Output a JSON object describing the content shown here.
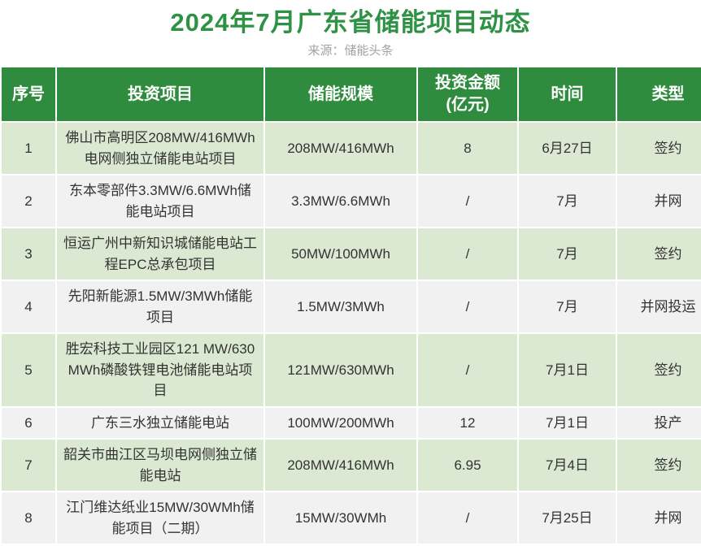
{
  "header": {
    "title": "2024年7月广东省储能项目动态",
    "source": "来源：储能头条"
  },
  "colors": {
    "title_green": "#2E9245",
    "table_header_green": "#2F8C3E",
    "row_light_green": "#DBE9D2",
    "row_light_gray": "#F1F1F1",
    "header_text": "#FFFFFF",
    "cell_text": "#333333",
    "source_gray": "#A3A3A3"
  },
  "chart_data": {
    "type": "table",
    "title": "2024年7月广东省储能项目动态",
    "subtitle": "来源：储能头条",
    "columns": [
      {
        "key": "no",
        "label": "序号"
      },
      {
        "key": "project",
        "label": "投资项目"
      },
      {
        "key": "scale",
        "label": "储能规模"
      },
      {
        "key": "amount",
        "label": "投资金额\n(亿元)"
      },
      {
        "key": "date",
        "label": "时间"
      },
      {
        "key": "type",
        "label": "类型"
      }
    ],
    "rows": [
      {
        "no": "1",
        "project": "佛山市高明区208MW/416MWh电网侧独立储能电站项目",
        "scale": "208MW/416MWh",
        "amount": "8",
        "date": "6月27日",
        "type": "签约"
      },
      {
        "no": "2",
        "project": "东本零部件3.3MW/6.6MWh储能电站项目",
        "scale": "3.3MW/6.6MWh",
        "amount": "/",
        "date": "7月",
        "type": "并网"
      },
      {
        "no": "3",
        "project": "恒运广州中新知识城储能电站工程EPC总承包项目",
        "scale": "50MW/100MWh",
        "amount": "/",
        "date": "7月",
        "type": "签约"
      },
      {
        "no": "4",
        "project": "先阳新能源1.5MW/3MWh储能项目",
        "scale": "1.5MW/3MWh",
        "amount": "/",
        "date": "7月",
        "type": "并网投运"
      },
      {
        "no": "5",
        "project": "胜宏科技工业园区121 MW/630 MWh磷酸铁锂电池储能电站项目",
        "scale": "121MW/630MWh",
        "amount": "/",
        "date": "7月1日",
        "type": "签约"
      },
      {
        "no": "6",
        "project": "广东三水独立储能电站",
        "scale": "100MW/200MWh",
        "amount": "12",
        "date": "7月1日",
        "type": "投产"
      },
      {
        "no": "7",
        "project": "韶关市曲江区马坝电网侧独立储能电站",
        "scale": "208MW/416MWh",
        "amount": "6.95",
        "date": "7月4日",
        "type": "签约"
      },
      {
        "no": "8",
        "project": "江门维达纸业15MW/30WMh储能项目（二期）",
        "scale": "15MW/30WMh",
        "amount": "/",
        "date": "7月25日",
        "type": "并网"
      }
    ]
  }
}
